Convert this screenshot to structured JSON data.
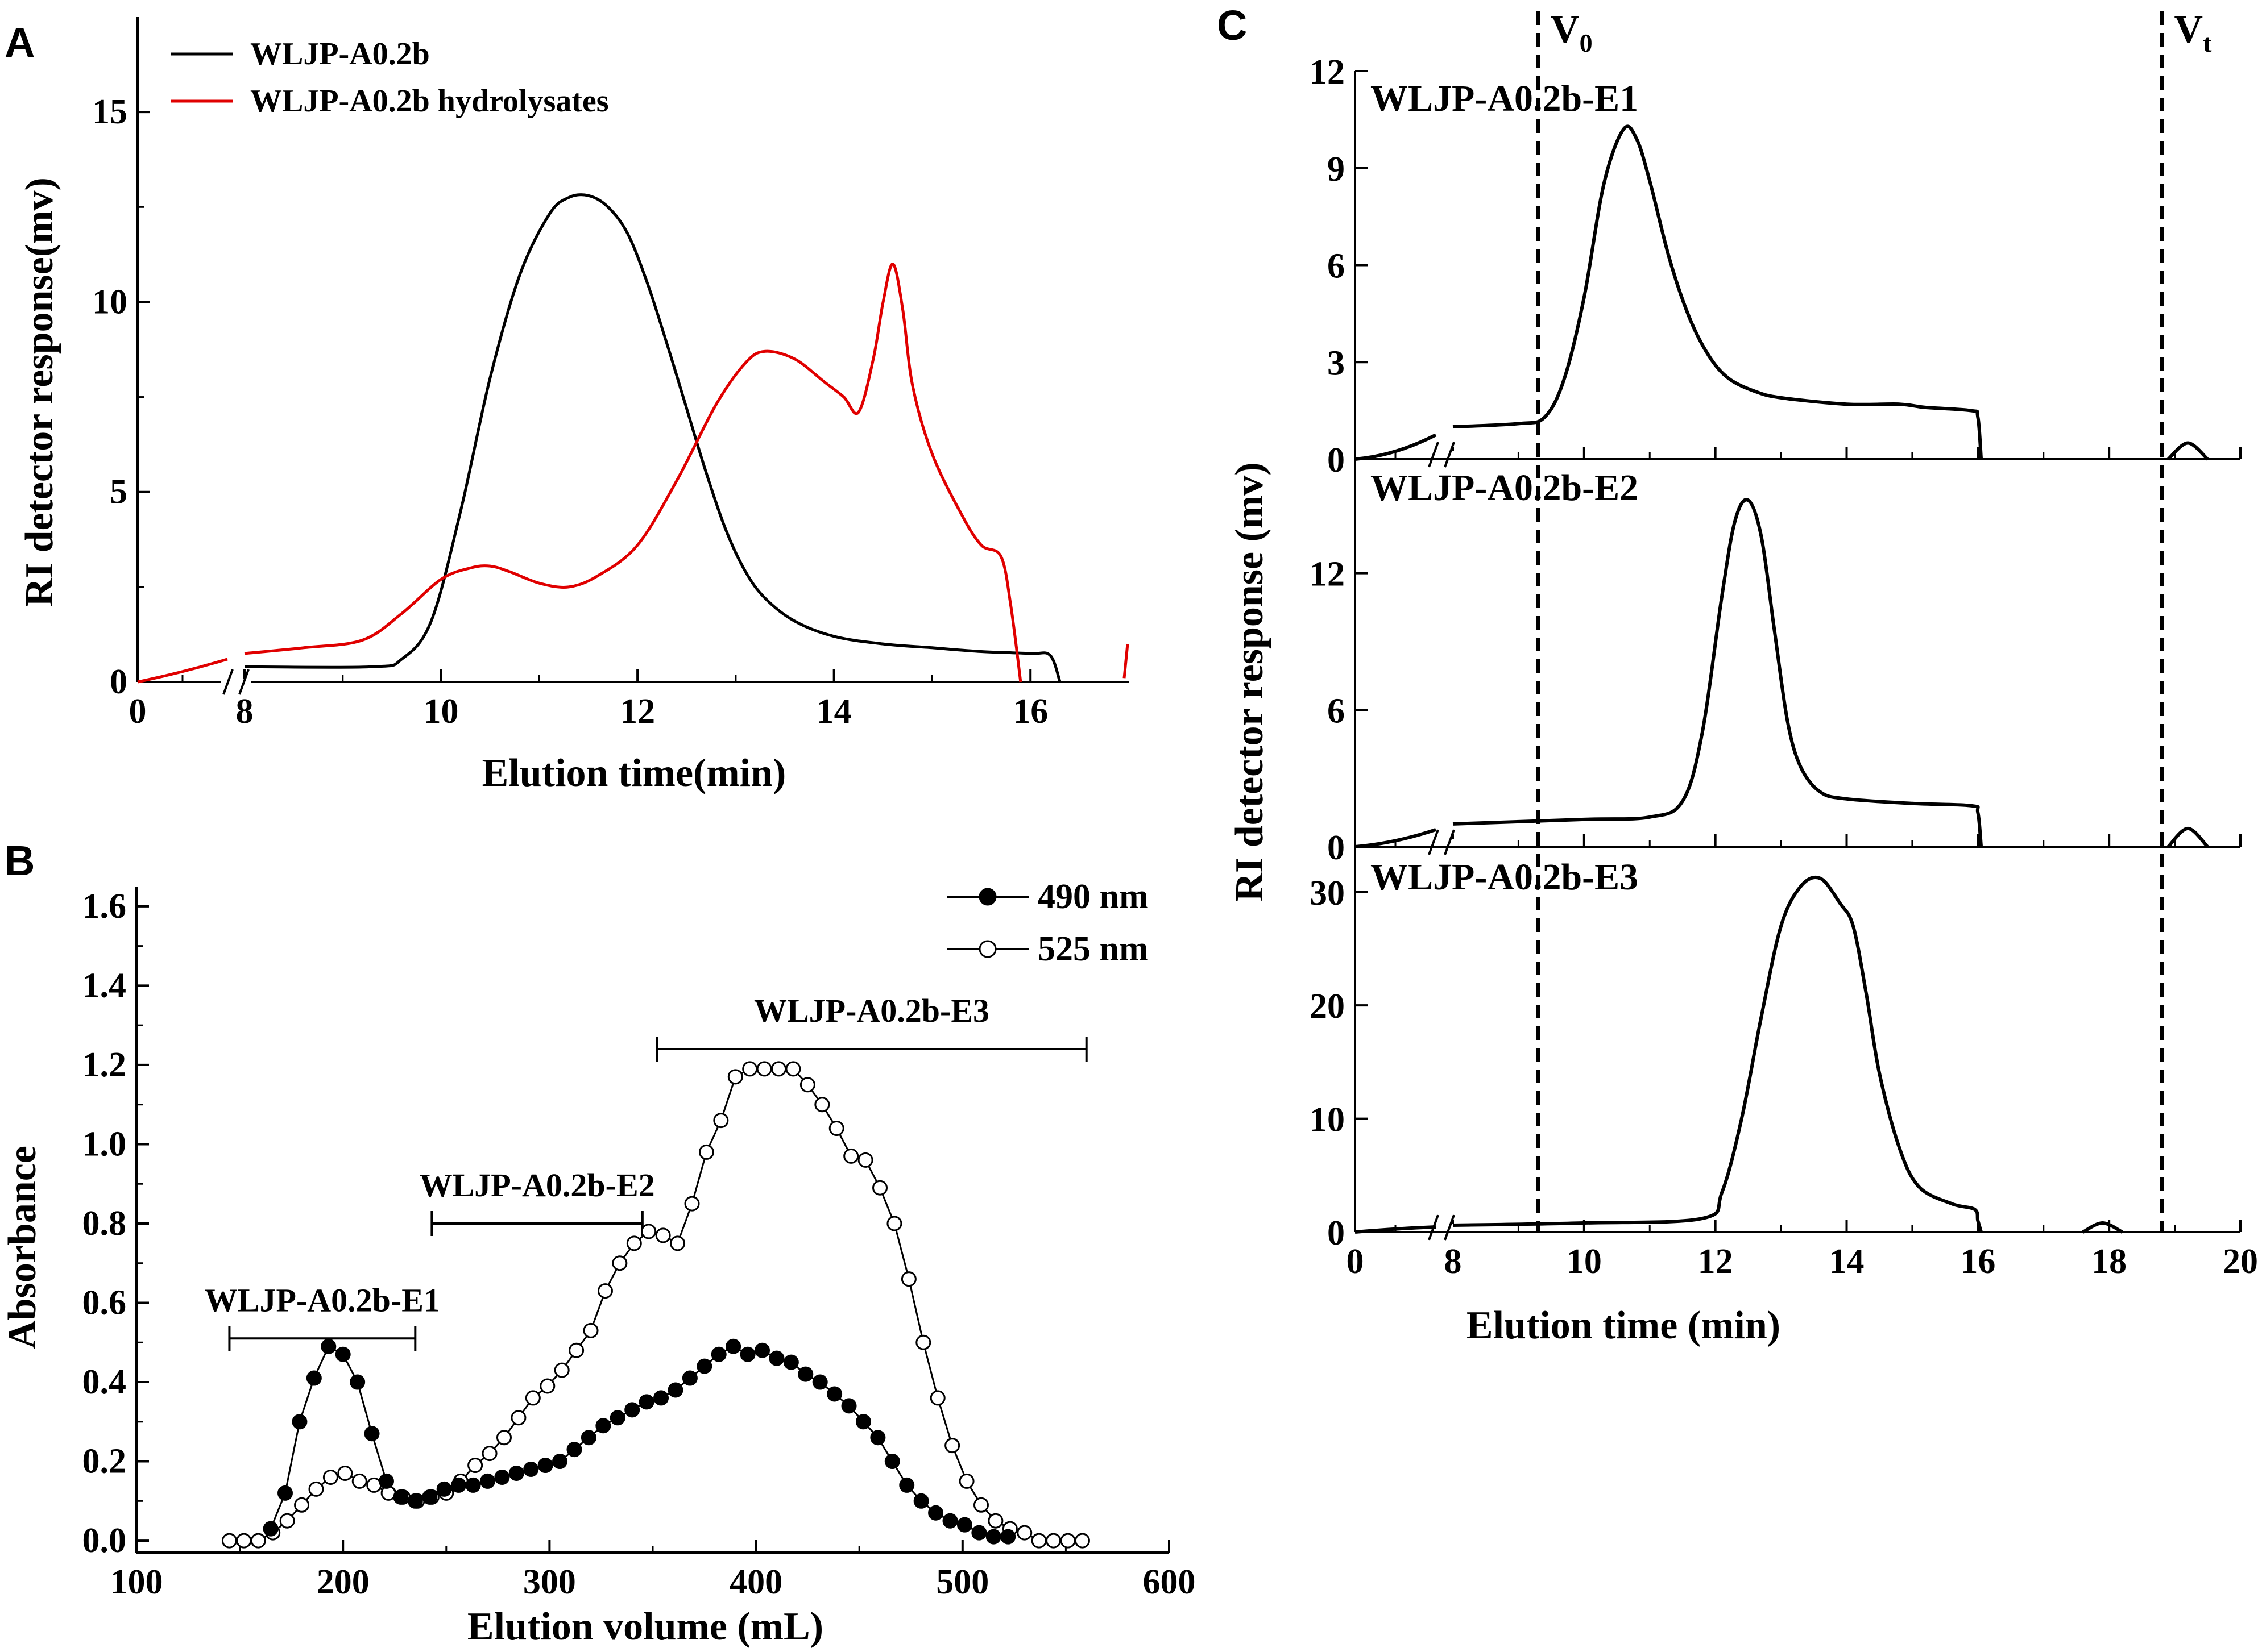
{
  "figure": {
    "panel_letters": [
      "A",
      "B",
      "C"
    ]
  },
  "chart_data": [
    {
      "panel": "A",
      "type": "line",
      "title": "",
      "xlabel": "Elution time(min)",
      "ylabel": "RI detector response(mv)",
      "x_break": true,
      "xticks": [
        0,
        8,
        10,
        12,
        14,
        16
      ],
      "yticks": [
        0,
        5,
        10,
        15
      ],
      "xlim": [
        0,
        17
      ],
      "ylim": [
        0,
        17.5
      ],
      "series": [
        {
          "name": "WLJP-A0.2b",
          "color": "#000000",
          "x": [
            8,
            9.3,
            9.6,
            9.9,
            10.2,
            10.5,
            10.8,
            11.1,
            11.3,
            11.5,
            11.7,
            11.9,
            12.1,
            12.3,
            12.5,
            12.7,
            12.9,
            13.1,
            13.3,
            13.6,
            14,
            14.5,
            15,
            15.5,
            16,
            16.2,
            16.3
          ],
          "values": [
            0.4,
            0.4,
            0.6,
            1.6,
            4.5,
            8.0,
            10.7,
            12.3,
            12.75,
            12.8,
            12.5,
            11.8,
            10.5,
            8.9,
            7.2,
            5.5,
            4.0,
            2.9,
            2.2,
            1.6,
            1.2,
            1.0,
            0.9,
            0.8,
            0.75,
            0.7,
            0.0
          ]
        },
        {
          "name": "WLJP-A0.2b hydrolysates",
          "color": "#e00000",
          "x": [
            8,
            8.6,
            9.2,
            9.6,
            10.0,
            10.3,
            10.5,
            10.7,
            11.0,
            11.3,
            11.6,
            12.0,
            12.4,
            12.8,
            13.1,
            13.3,
            13.6,
            13.9,
            14.1,
            14.25,
            14.4,
            14.5,
            14.6,
            14.7,
            14.8,
            15.0,
            15.3,
            15.5,
            15.7,
            15.8,
            15.9
          ],
          "values": [
            0.75,
            0.9,
            1.1,
            1.8,
            2.7,
            3.0,
            3.05,
            2.9,
            2.6,
            2.5,
            2.8,
            3.6,
            5.3,
            7.3,
            8.4,
            8.7,
            8.5,
            7.9,
            7.5,
            7.1,
            8.5,
            10.0,
            11.0,
            9.8,
            7.8,
            6.0,
            4.4,
            3.6,
            3.3,
            2.0,
            0.0
          ]
        }
      ]
    },
    {
      "panel": "B",
      "type": "scatter",
      "title": "",
      "xlabel": "Elution volume (mL)",
      "ylabel": "Absorbance",
      "xticks": [
        100,
        200,
        300,
        400,
        500,
        600
      ],
      "yticks": [
        0.0,
        0.2,
        0.4,
        0.6,
        0.8,
        1.0,
        1.2,
        1.4,
        1.6
      ],
      "xlim": [
        100,
        600
      ],
      "ylim": [
        -0.03,
        1.65
      ],
      "series": [
        {
          "name": "490 nm",
          "marker": "filled-circle",
          "x": [
            165,
            172,
            179,
            186,
            193,
            200,
            207,
            214,
            221,
            228,
            235,
            242,
            249,
            256,
            263,
            270,
            277,
            284,
            291,
            298,
            305,
            312,
            319,
            326,
            333,
            340,
            347,
            354,
            361,
            368,
            375,
            382,
            389,
            396,
            403,
            410,
            417,
            424,
            431,
            438,
            445,
            452,
            459,
            466,
            473,
            480,
            487,
            494,
            501,
            508,
            515,
            522
          ],
          "values": [
            0.03,
            0.12,
            0.3,
            0.41,
            0.49,
            0.47,
            0.4,
            0.27,
            0.15,
            0.11,
            0.1,
            0.11,
            0.13,
            0.14,
            0.14,
            0.15,
            0.16,
            0.17,
            0.18,
            0.19,
            0.2,
            0.23,
            0.26,
            0.29,
            0.31,
            0.33,
            0.35,
            0.36,
            0.38,
            0.41,
            0.44,
            0.47,
            0.49,
            0.47,
            0.48,
            0.46,
            0.45,
            0.42,
            0.4,
            0.37,
            0.34,
            0.3,
            0.26,
            0.2,
            0.14,
            0.1,
            0.07,
            0.05,
            0.04,
            0.02,
            0.01,
            0.01
          ]
        },
        {
          "name": "525 nm",
          "marker": "open-circle",
          "x": [
            145,
            152,
            159,
            166,
            173,
            180,
            187,
            194,
            201,
            208,
            215,
            222,
            229,
            236,
            243,
            250,
            257,
            264,
            271,
            278,
            285,
            292,
            299,
            306,
            313,
            320,
            327,
            334,
            341,
            348,
            355,
            362,
            369,
            376,
            383,
            390,
            397,
            404,
            411,
            418,
            425,
            432,
            439,
            446,
            453,
            460,
            467,
            474,
            481,
            488,
            495,
            502,
            509,
            516,
            523,
            530,
            537,
            544,
            551,
            558
          ],
          "values": [
            0.0,
            0.0,
            0.0,
            0.02,
            0.05,
            0.09,
            0.13,
            0.16,
            0.17,
            0.15,
            0.14,
            0.12,
            0.11,
            0.1,
            0.11,
            0.12,
            0.15,
            0.19,
            0.22,
            0.26,
            0.31,
            0.36,
            0.39,
            0.43,
            0.48,
            0.53,
            0.63,
            0.7,
            0.75,
            0.78,
            0.77,
            0.75,
            0.85,
            0.98,
            1.06,
            1.17,
            1.19,
            1.19,
            1.19,
            1.19,
            1.15,
            1.1,
            1.04,
            0.97,
            0.96,
            0.89,
            0.8,
            0.66,
            0.5,
            0.36,
            0.24,
            0.15,
            0.09,
            0.05,
            0.03,
            0.02,
            0.0,
            0.0,
            0.0,
            0.0
          ]
        }
      ],
      "annotations": [
        {
          "label": "WLJP-A0.2b-E1",
          "x_range": [
            145,
            235
          ],
          "y": 0.51
        },
        {
          "label": "WLJP-A0.2b-E2",
          "x_range": [
            243,
            345
          ],
          "y": 0.8
        },
        {
          "label": "WLJP-A0.2b-E3",
          "x_range": [
            352,
            560
          ],
          "y": 1.24
        }
      ]
    },
    {
      "panel": "C",
      "type": "line",
      "title": "",
      "xlabel": "Elution time (min)",
      "ylabel": "RI detector response (mv)",
      "x_break": true,
      "xticks": [
        0,
        8,
        10,
        12,
        14,
        16,
        18,
        20
      ],
      "xlim": [
        0,
        20
      ],
      "reference_lines": [
        {
          "label": "V",
          "subscript": "0",
          "x": 9.3
        },
        {
          "label": "V",
          "subscript": "t",
          "x": 18.8
        }
      ],
      "subplots": [
        {
          "name": "WLJP-A0.2b-E1",
          "yticks": [
            0,
            3,
            6,
            9,
            12
          ],
          "ylim": [
            0,
            12
          ],
          "x": [
            8,
            9.0,
            9.4,
            9.7,
            10.0,
            10.3,
            10.6,
            10.8,
            11.0,
            11.3,
            11.6,
            11.9,
            12.2,
            12.6,
            13,
            14,
            14.8,
            15.2,
            15.9,
            16,
            16.05
          ],
          "values": [
            1.0,
            1.1,
            1.3,
            2.5,
            5.0,
            8.5,
            10.2,
            9.9,
            8.6,
            6.2,
            4.4,
            3.2,
            2.5,
            2.1,
            1.9,
            1.7,
            1.7,
            1.6,
            1.5,
            1.3,
            0.0
          ],
          "tail_x": [
            18.9,
            19.2,
            19.5
          ],
          "tail_values": [
            0.0,
            0.5,
            0.0
          ]
        },
        {
          "name": "WLJP-A0.2b-E2",
          "yticks": [
            0,
            6,
            12
          ],
          "ylim": [
            0,
            17
          ],
          "x": [
            8,
            10,
            11.0,
            11.5,
            11.8,
            12.1,
            12.3,
            12.5,
            12.7,
            12.9,
            13.1,
            13.3,
            13.6,
            14.0,
            15.0,
            15.9,
            16,
            16.05
          ],
          "values": [
            1.0,
            1.2,
            1.3,
            2.0,
            5.0,
            11.0,
            14.3,
            15.2,
            13.6,
            9.5,
            5.5,
            3.5,
            2.4,
            2.1,
            1.9,
            1.8,
            1.5,
            0.0
          ],
          "tail_x": [
            18.9,
            19.2,
            19.5
          ],
          "tail_values": [
            0.0,
            0.8,
            0.0
          ]
        },
        {
          "name": "WLJP-A0.2b-E3",
          "yticks": [
            0,
            10,
            20,
            30
          ],
          "ylim": [
            0,
            34
          ],
          "x": [
            8,
            10,
            11.8,
            12.1,
            12.4,
            12.7,
            13.0,
            13.3,
            13.6,
            13.9,
            14.1,
            14.3,
            14.5,
            14.8,
            15.1,
            15.6,
            15.95,
            16,
            16.05
          ],
          "values": [
            0.6,
            0.8,
            1.2,
            3.5,
            10.0,
            19.0,
            27.0,
            30.5,
            31.2,
            29.0,
            27.0,
            21.0,
            14.0,
            7.5,
            4.0,
            2.5,
            2.0,
            1.0,
            0.0
          ],
          "tail_x": [
            17.6,
            17.9,
            18.2
          ],
          "tail_values": [
            0.0,
            0.8,
            0.0
          ]
        }
      ]
    }
  ]
}
